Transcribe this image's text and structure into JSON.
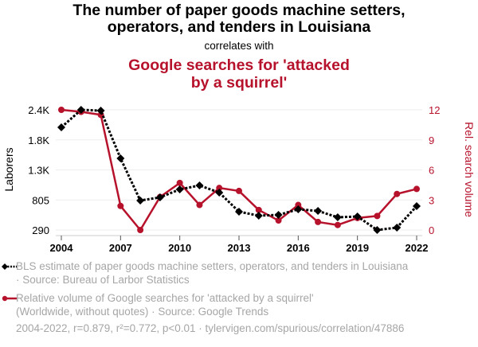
{
  "header": {
    "title_line1": "The number of paper goods machine setters,",
    "title_line2": "operators, and tenders in Louisiana",
    "correlates": "correlates with",
    "subtitle_line1": "Google searches for 'attacked",
    "subtitle_line2": "by a squirrel'"
  },
  "colors": {
    "series_a": "#000000",
    "series_b": "#b7122c",
    "grid": "#eeeeee",
    "legend_text": "#a6a6a6"
  },
  "chart_data": {
    "type": "line",
    "x": [
      2004,
      2005,
      2006,
      2007,
      2008,
      2009,
      2010,
      2011,
      2012,
      2013,
      2014,
      2015,
      2016,
      2017,
      2018,
      2019,
      2020,
      2021,
      2022
    ],
    "xticks": [
      "2004",
      "2007",
      "2010",
      "2013",
      "2016",
      "2019",
      "2022"
    ],
    "xtick_values": [
      2004,
      2007,
      2010,
      2013,
      2016,
      2019,
      2022
    ],
    "xlim": [
      2004,
      2022
    ],
    "ylabel_left": "Laborers",
    "ylabel_right": "Rel. search volume",
    "yticks_left": [
      "290",
      "805",
      "1.3K",
      "1.8K",
      "2.4K"
    ],
    "yticks_left_values": [
      290,
      805,
      1320,
      1835,
      2350
    ],
    "ylim_left": [
      290,
      2350
    ],
    "yticks_right": [
      "0",
      "3",
      "6",
      "9",
      "12"
    ],
    "yticks_right_values": [
      0,
      3,
      6,
      9,
      12
    ],
    "ylim_right": [
      0,
      12
    ],
    "grid": true,
    "series": [
      {
        "name": "BLS estimate of paper goods machine setters, operators, and tenders in Louisiana",
        "axis": "left",
        "style": "dotted-diamond",
        "values": [
          2050,
          2350,
          2336,
          1518,
          795,
          850,
          986,
          1054,
          931,
          604,
          536,
          549,
          645,
          617,
          508,
          522,
          290,
          331,
          699
        ]
      },
      {
        "name": "Relative volume of Google searches for 'attacked by a squirrel'",
        "axis": "right",
        "style": "solid-circle",
        "values": [
          12,
          11.8,
          11.5,
          2.4,
          0,
          3.3,
          4.7,
          2.5,
          4.2,
          3.9,
          2.0,
          0.95,
          2.5,
          0.8,
          0.5,
          1.2,
          1.4,
          3.6,
          4.1
        ]
      }
    ]
  },
  "legend": {
    "a_line1": "BLS estimate of paper goods machine setters, operators, and tenders in Louisiana",
    "a_line2": "· Source: Bureau of Larbor Statistics",
    "b_line1": "Relative volume of Google searches for 'attacked by a squirrel'",
    "b_line2": "(Worldwide, without quotes) · Source: Google Trends"
  },
  "footer": "2004-2022, r=0.879, r²=0.772, p<0.01 · tylervigen.com/spurious/correlation/47886"
}
